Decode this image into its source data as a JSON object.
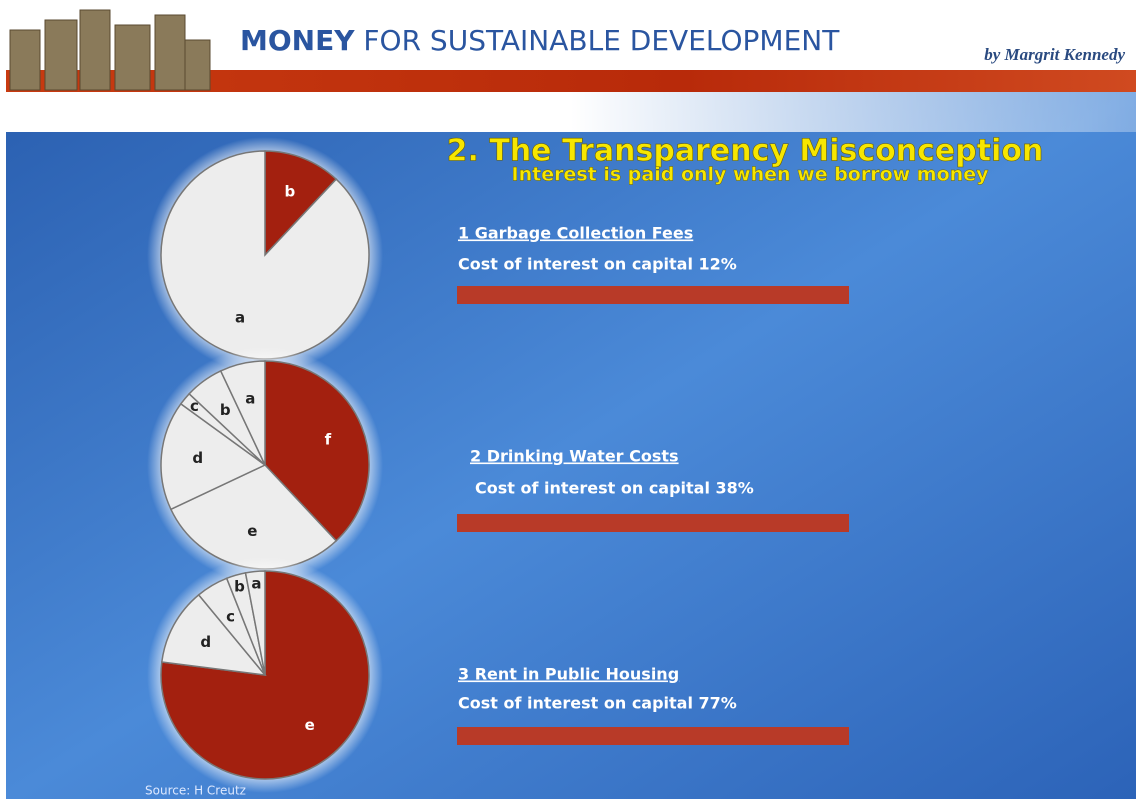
{
  "header": {
    "title_bold": "MONEY",
    "title_rest": "FOR SUSTAINABLE DEVELOPMENT",
    "author": "by Margrit Kennedy"
  },
  "slide": {
    "title": "2. The Transparency Misconception",
    "subtitle": "Interest is paid only when we borrow money",
    "items": [
      {
        "heading": "1  Garbage Collection Fees",
        "text": "Cost of interest on capital  12%"
      },
      {
        "heading": "2  Drinking Water Costs",
        "text": "Cost of interest on capital  38%"
      },
      {
        "heading": "3  Rent in Public Housing",
        "text": "Cost of interest on capital  77%"
      }
    ],
    "source": "Source: H Creutz"
  },
  "chart_data": [
    {
      "type": "pie",
      "categories": [
        "b",
        "a"
      ],
      "values": [
        12,
        88
      ],
      "colors": [
        "#a3200f",
        "#ededed"
      ]
    },
    {
      "type": "pie",
      "categories": [
        "f",
        "e",
        "d",
        "c",
        "b",
        "a"
      ],
      "values": [
        38,
        30,
        17,
        2,
        6,
        7
      ],
      "colors": [
        "#a3200f",
        "#ededed",
        "#ededed",
        "#ededed",
        "#ededed",
        "#ededed"
      ]
    },
    {
      "type": "pie",
      "categories": [
        "e",
        "d",
        "c",
        "b",
        "a"
      ],
      "values": [
        77,
        12,
        5,
        3,
        3
      ],
      "colors": [
        "#a3200f",
        "#ededed",
        "#ededed",
        "#ededed",
        "#ededed"
      ]
    }
  ]
}
